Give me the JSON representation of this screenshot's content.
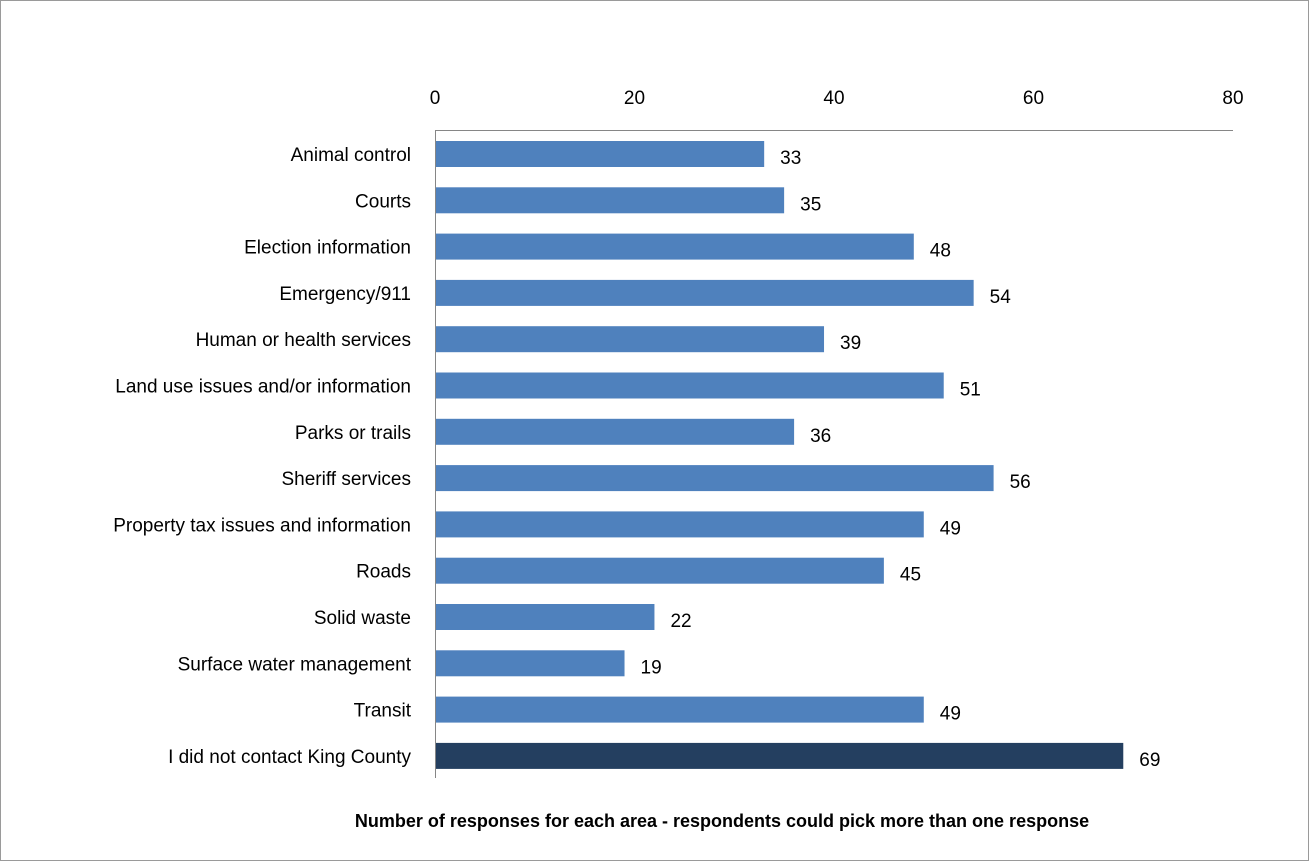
{
  "chart_data": {
    "type": "bar",
    "orientation": "horizontal",
    "title": "",
    "xlabel": "Number of responses for each area - respondents could pick more than one response",
    "ylabel": "",
    "xlim": [
      0,
      80
    ],
    "xticks": [
      0,
      20,
      40,
      60,
      80
    ],
    "x_axis_position": "top",
    "grid": false,
    "legend": "none",
    "categories": [
      "Animal control",
      "Courts",
      "Election information",
      "Emergency/911",
      "Human or health services",
      "Land use issues and/or information",
      "Parks or trails",
      "Sheriff services",
      "Property tax issues and information",
      "Roads",
      "Solid waste",
      "Surface water management",
      "Transit",
      "I did not contact King County"
    ],
    "values": [
      33,
      35,
      48,
      54,
      39,
      51,
      36,
      56,
      49,
      45,
      22,
      19,
      49,
      69
    ],
    "colors": {
      "bar": "#4f81bd",
      "highlight_bar": "#243f60",
      "axis": "#868686"
    },
    "highlight_index": 13
  }
}
